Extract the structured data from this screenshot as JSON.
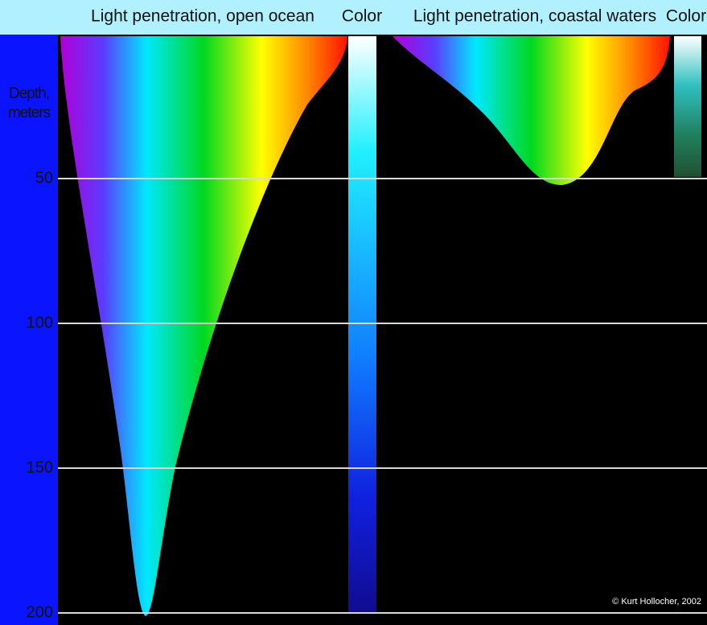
{
  "header": {
    "open_ocean_title": "Light penetration, open ocean",
    "open_ocean_color_label": "Color",
    "coastal_title": "Light penetration, coastal waters",
    "coastal_color_label": "Color"
  },
  "depth_axis": {
    "label": "Depth, meters",
    "range": [
      0,
      200
    ],
    "ticks": [
      50,
      100,
      150,
      200
    ]
  },
  "credit": "© Kurt Hollocher, 2002"
}
